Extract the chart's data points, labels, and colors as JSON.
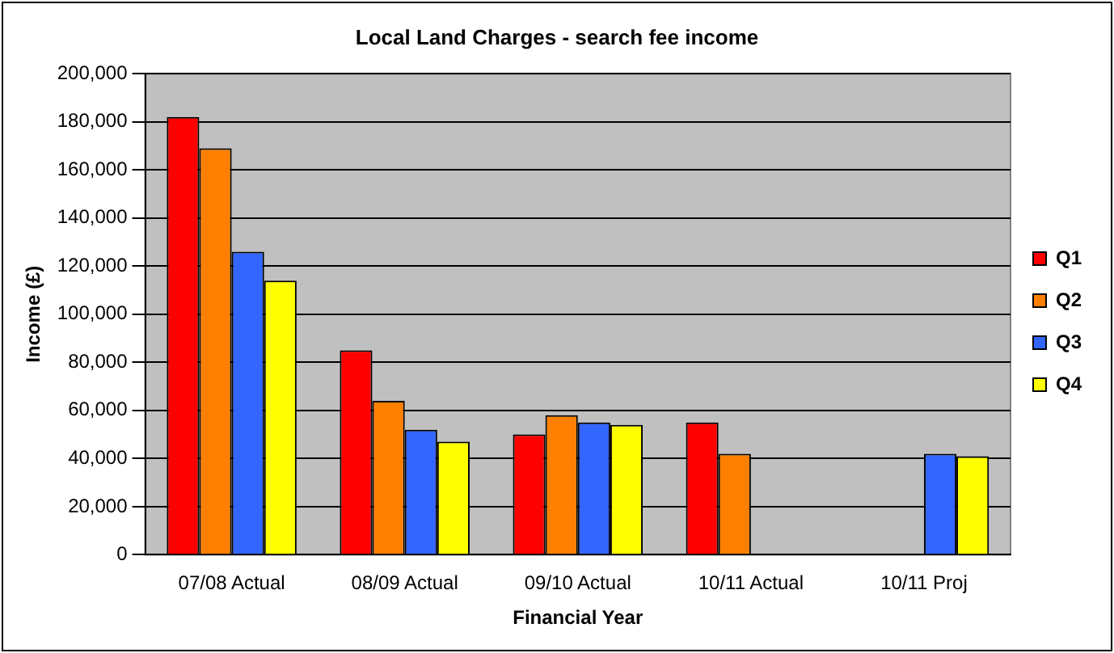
{
  "chart_data": {
    "type": "bar",
    "title": "Local Land Charges - search fee income",
    "xlabel": "Financial Year",
    "ylabel": "Income (£)",
    "categories": [
      "07/08 Actual",
      "08/09 Actual",
      "09/10 Actual",
      "10/11 Actual",
      "10/11 Proj"
    ],
    "series": [
      {
        "name": "Q1",
        "color": "#ff0000",
        "values": [
          182000,
          85000,
          50000,
          55000,
          null
        ]
      },
      {
        "name": "Q2",
        "color": "#ff8000",
        "values": [
          169000,
          64000,
          58000,
          42000,
          null
        ]
      },
      {
        "name": "Q3",
        "color": "#3366ff",
        "values": [
          126000,
          52000,
          55000,
          null,
          42000
        ]
      },
      {
        "name": "Q4",
        "color": "#ffff00",
        "values": [
          114000,
          47000,
          54000,
          null,
          41000
        ]
      }
    ],
    "ylim": [
      0,
      200000
    ],
    "yticks": [
      0,
      {
        "value": 20000,
        "label": "20,000"
      },
      {
        "value": 40000,
        "label": "40,000"
      },
      {
        "value": 60000,
        "label": "60,000"
      },
      {
        "value": 80000,
        "label": "80,000"
      },
      {
        "value": 100000,
        "label": "100,000"
      },
      {
        "value": 120000,
        "label": "120,000"
      },
      {
        "value": 140000,
        "label": "140,000"
      },
      {
        "value": 160000,
        "label": "160,000"
      },
      {
        "value": 180000,
        "label": "180,000"
      },
      {
        "value": 200000,
        "label": "200,000"
      }
    ],
    "grid": "y",
    "legend": "right"
  }
}
